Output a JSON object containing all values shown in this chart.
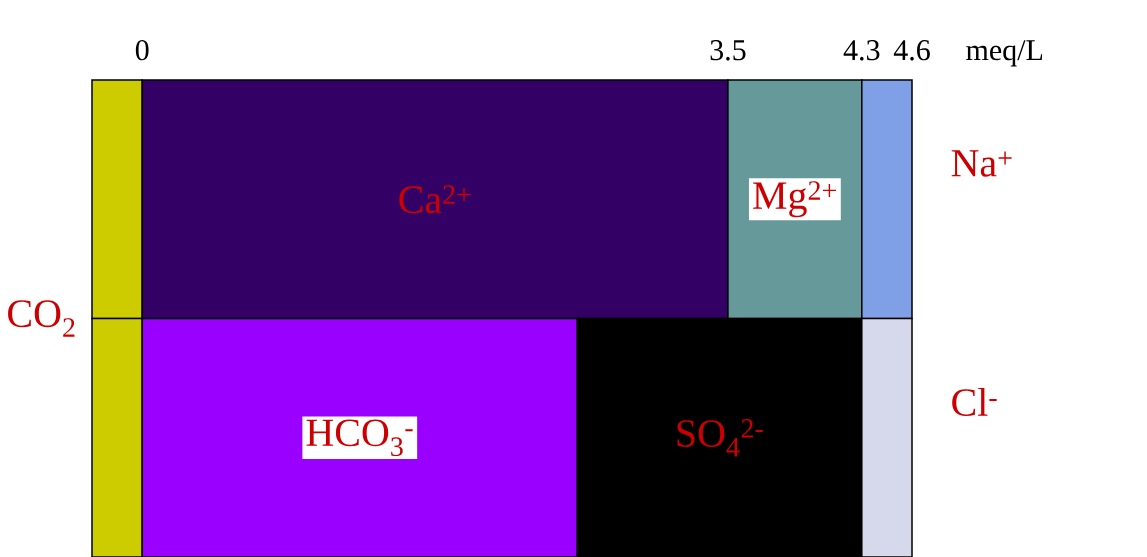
{
  "chart_data": {
    "type": "bar",
    "orientation": "horizontal",
    "stacked": true,
    "tick_labels": "x",
    "categories": [
      null,
      null
    ],
    "xlabel": "meq/L",
    "xlim": [
      -0.3,
      4.6
    ],
    "xticks": [
      0,
      3.5,
      4.3,
      4.6
    ],
    "series": [
      {
        "name": "CO$_{2}$",
        "color": "#cccc00",
        "values": [
          -0.3,
          -0.3
        ]
      },
      {
        "name": "Ca$^{2+}$",
        "color": "#330066",
        "values": [
          3.5,
          null
        ]
      },
      {
        "name": "Mg$^{2+}$",
        "color": "#669999",
        "values": [
          0.8,
          null
        ]
      },
      {
        "name": "Na$^{+}$",
        "color": "#7f9fe6",
        "values": [
          0.3,
          null
        ]
      },
      {
        "name": "HCO$_{3}$$^{-}$",
        "color": "#9900ff",
        "values": [
          null,
          2.6
        ]
      },
      {
        "name": "SO$_{4}$$^{2-}$",
        "color": "#000000",
        "values": [
          null,
          1.7
        ]
      },
      {
        "name": "Cl$^{-}$",
        "color": "#d6d9ec",
        "values": [
          null,
          0.3
        ]
      }
    ]
  }
}
